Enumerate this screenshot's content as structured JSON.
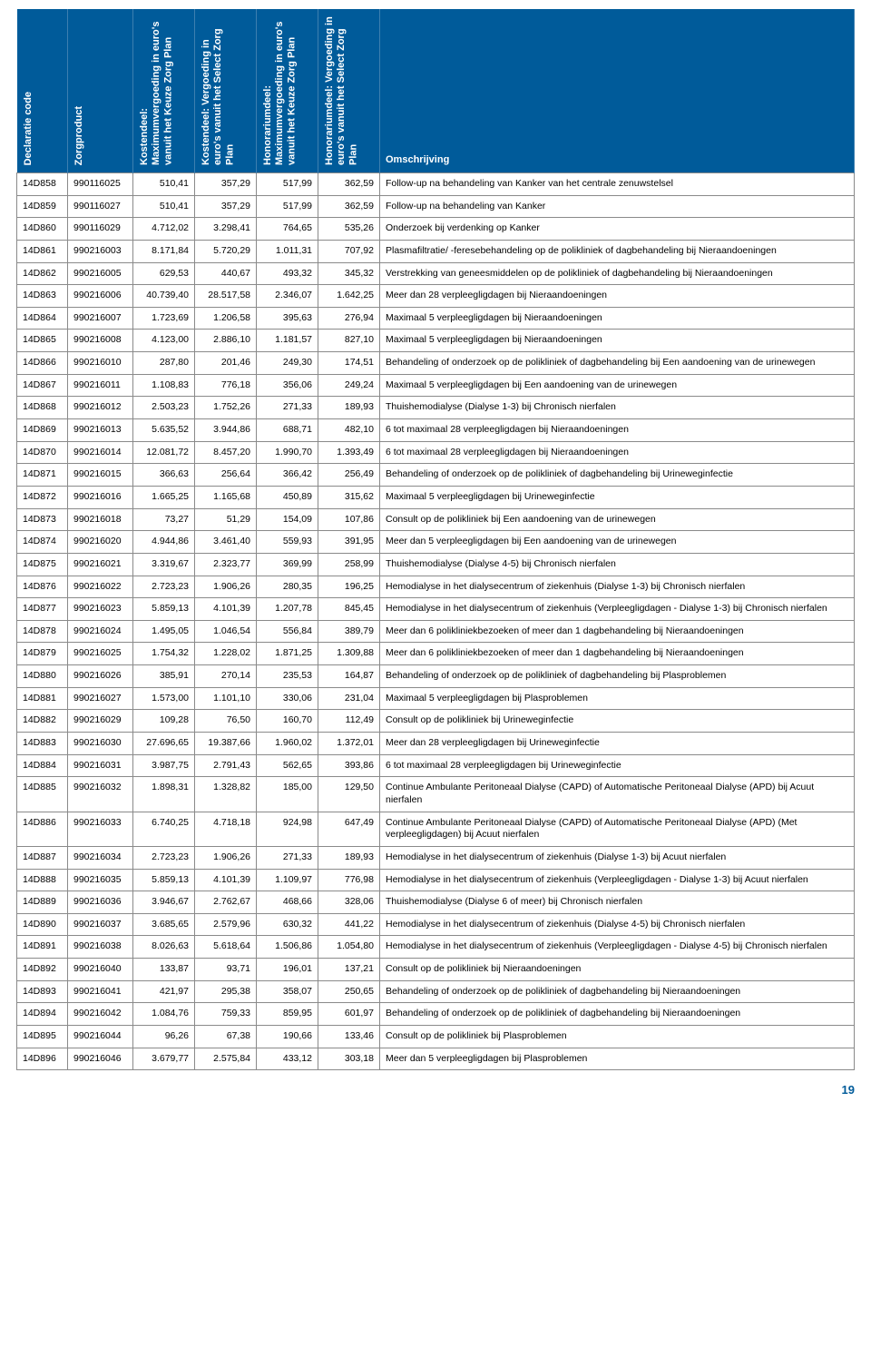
{
  "page_number": "19",
  "columns": [
    "Declaratie code",
    "Zorgproduct",
    "Kostendeel: Maximumvergoeding in euro's vanuit het Keuze Zorg Plan",
    "Kostendeel: Vergoeding in euro's vanuit het Select Zorg Plan",
    "Honorariumdeel: Maximumvergoeding in euro's vanuit het Keuze Zorg Plan",
    "Honorariumdeel: Vergoeding in euro's vanuit het Select Zorg Plan",
    "Omschrijving"
  ],
  "rows": [
    [
      "14D858",
      "990116025",
      "510,41",
      "357,29",
      "517,99",
      "362,59",
      "Follow-up na behandeling van Kanker van het centrale zenuwstelsel"
    ],
    [
      "14D859",
      "990116027",
      "510,41",
      "357,29",
      "517,99",
      "362,59",
      "Follow-up na behandeling van Kanker"
    ],
    [
      "14D860",
      "990116029",
      "4.712,02",
      "3.298,41",
      "764,65",
      "535,26",
      "Onderzoek bij verdenking op Kanker"
    ],
    [
      "14D861",
      "990216003",
      "8.171,84",
      "5.720,29",
      "1.011,31",
      "707,92",
      "Plasmafiltratie/ -feresebehandeling op de polikliniek of dagbehandeling bij Nieraandoeningen"
    ],
    [
      "14D862",
      "990216005",
      "629,53",
      "440,67",
      "493,32",
      "345,32",
      "Verstrekking van geneesmiddelen op de polikliniek of dagbehandeling bij Nieraandoeningen"
    ],
    [
      "14D863",
      "990216006",
      "40.739,40",
      "28.517,58",
      "2.346,07",
      "1.642,25",
      "Meer dan 28 verpleegligdagen bij Nieraandoeningen"
    ],
    [
      "14D864",
      "990216007",
      "1.723,69",
      "1.206,58",
      "395,63",
      "276,94",
      "Maximaal 5 verpleegligdagen bij Nieraandoeningen"
    ],
    [
      "14D865",
      "990216008",
      "4.123,00",
      "2.886,10",
      "1.181,57",
      "827,10",
      "Maximaal 5 verpleegligdagen bij Nieraandoeningen"
    ],
    [
      "14D866",
      "990216010",
      "287,80",
      "201,46",
      "249,30",
      "174,51",
      "Behandeling of onderzoek op de polikliniek of dagbehandeling bij Een aandoening van de urinewegen"
    ],
    [
      "14D867",
      "990216011",
      "1.108,83",
      "776,18",
      "356,06",
      "249,24",
      "Maximaal 5 verpleegligdagen bij Een aandoening van de urinewegen"
    ],
    [
      "14D868",
      "990216012",
      "2.503,23",
      "1.752,26",
      "271,33",
      "189,93",
      "Thuishemodialyse (Dialyse 1-3) bij Chronisch nierfalen"
    ],
    [
      "14D869",
      "990216013",
      "5.635,52",
      "3.944,86",
      "688,71",
      "482,10",
      "6 tot maximaal 28 verpleegligdagen bij Nieraandoeningen"
    ],
    [
      "14D870",
      "990216014",
      "12.081,72",
      "8.457,20",
      "1.990,70",
      "1.393,49",
      "6 tot maximaal 28 verpleegligdagen bij Nieraandoeningen"
    ],
    [
      "14D871",
      "990216015",
      "366,63",
      "256,64",
      "366,42",
      "256,49",
      "Behandeling of onderzoek op de polikliniek of dagbehandeling bij Urineweginfectie"
    ],
    [
      "14D872",
      "990216016",
      "1.665,25",
      "1.165,68",
      "450,89",
      "315,62",
      "Maximaal 5 verpleegligdagen bij Urineweginfectie"
    ],
    [
      "14D873",
      "990216018",
      "73,27",
      "51,29",
      "154,09",
      "107,86",
      "Consult op de polikliniek bij Een aandoening van de urinewegen"
    ],
    [
      "14D874",
      "990216020",
      "4.944,86",
      "3.461,40",
      "559,93",
      "391,95",
      "Meer dan 5 verpleegligdagen bij Een aandoening van de urinewegen"
    ],
    [
      "14D875",
      "990216021",
      "3.319,67",
      "2.323,77",
      "369,99",
      "258,99",
      "Thuishemodialyse (Dialyse 4-5) bij Chronisch nierfalen"
    ],
    [
      "14D876",
      "990216022",
      "2.723,23",
      "1.906,26",
      "280,35",
      "196,25",
      "Hemodialyse in het dialysecentrum of ziekenhuis (Dialyse 1-3) bij Chronisch nierfalen"
    ],
    [
      "14D877",
      "990216023",
      "5.859,13",
      "4.101,39",
      "1.207,78",
      "845,45",
      "Hemodialyse in het dialysecentrum of ziekenhuis (Verpleegligdagen - Dialyse 1-3) bij Chronisch nierfalen"
    ],
    [
      "14D878",
      "990216024",
      "1.495,05",
      "1.046,54",
      "556,84",
      "389,79",
      "Meer dan 6 polikliniekbezoeken of meer dan 1 dagbehandeling bij Nieraandoeningen"
    ],
    [
      "14D879",
      "990216025",
      "1.754,32",
      "1.228,02",
      "1.871,25",
      "1.309,88",
      "Meer dan 6 polikliniekbezoeken of meer dan 1 dagbehandeling bij Nieraandoeningen"
    ],
    [
      "14D880",
      "990216026",
      "385,91",
      "270,14",
      "235,53",
      "164,87",
      "Behandeling of onderzoek op de polikliniek of dagbehandeling bij Plasproblemen"
    ],
    [
      "14D881",
      "990216027",
      "1.573,00",
      "1.101,10",
      "330,06",
      "231,04",
      "Maximaal 5 verpleegligdagen bij Plasproblemen"
    ],
    [
      "14D882",
      "990216029",
      "109,28",
      "76,50",
      "160,70",
      "112,49",
      "Consult op de polikliniek bij Urineweginfectie"
    ],
    [
      "14D883",
      "990216030",
      "27.696,65",
      "19.387,66",
      "1.960,02",
      "1.372,01",
      "Meer dan 28 verpleegligdagen bij Urineweginfectie"
    ],
    [
      "14D884",
      "990216031",
      "3.987,75",
      "2.791,43",
      "562,65",
      "393,86",
      "6 tot maximaal 28 verpleegligdagen bij Urineweginfectie"
    ],
    [
      "14D885",
      "990216032",
      "1.898,31",
      "1.328,82",
      "185,00",
      "129,50",
      "Continue Ambulante Peritoneaal Dialyse (CAPD) of Automatische Peritoneaal Dialyse (APD) bij Acuut nierfalen"
    ],
    [
      "14D886",
      "990216033",
      "6.740,25",
      "4.718,18",
      "924,98",
      "647,49",
      "Continue Ambulante Peritoneaal Dialyse (CAPD) of Automatische Peritoneaal Dialyse (APD) (Met verpleegligdagen) bij Acuut nierfalen"
    ],
    [
      "14D887",
      "990216034",
      "2.723,23",
      "1.906,26",
      "271,33",
      "189,93",
      "Hemodialyse in het dialysecentrum of ziekenhuis (Dialyse 1-3) bij Acuut nierfalen"
    ],
    [
      "14D888",
      "990216035",
      "5.859,13",
      "4.101,39",
      "1.109,97",
      "776,98",
      "Hemodialyse in het dialysecentrum of ziekenhuis (Verpleegligdagen - Dialyse 1-3) bij Acuut nierfalen"
    ],
    [
      "14D889",
      "990216036",
      "3.946,67",
      "2.762,67",
      "468,66",
      "328,06",
      "Thuishemodialyse (Dialyse 6 of meer) bij Chronisch nierfalen"
    ],
    [
      "14D890",
      "990216037",
      "3.685,65",
      "2.579,96",
      "630,32",
      "441,22",
      "Hemodialyse in het dialysecentrum of ziekenhuis (Dialyse 4-5) bij Chronisch nierfalen"
    ],
    [
      "14D891",
      "990216038",
      "8.026,63",
      "5.618,64",
      "1.506,86",
      "1.054,80",
      "Hemodialyse in het dialysecentrum of ziekenhuis (Verpleegligdagen - Dialyse 4-5) bij Chronisch nierfalen"
    ],
    [
      "14D892",
      "990216040",
      "133,87",
      "93,71",
      "196,01",
      "137,21",
      "Consult op de polikliniek bij Nieraandoeningen"
    ],
    [
      "14D893",
      "990216041",
      "421,97",
      "295,38",
      "358,07",
      "250,65",
      "Behandeling of onderzoek op de polikliniek of dagbehandeling bij Nieraandoeningen"
    ],
    [
      "14D894",
      "990216042",
      "1.084,76",
      "759,33",
      "859,95",
      "601,97",
      "Behandeling of onderzoek op de polikliniek of dagbehandeling bij Nieraandoeningen"
    ],
    [
      "14D895",
      "990216044",
      "96,26",
      "67,38",
      "190,66",
      "133,46",
      "Consult op de polikliniek bij Plasproblemen"
    ],
    [
      "14D896",
      "990216046",
      "3.679,77",
      "2.575,84",
      "433,12",
      "303,18",
      "Meer dan 5 verpleegligdagen bij Plasproblemen"
    ]
  ]
}
